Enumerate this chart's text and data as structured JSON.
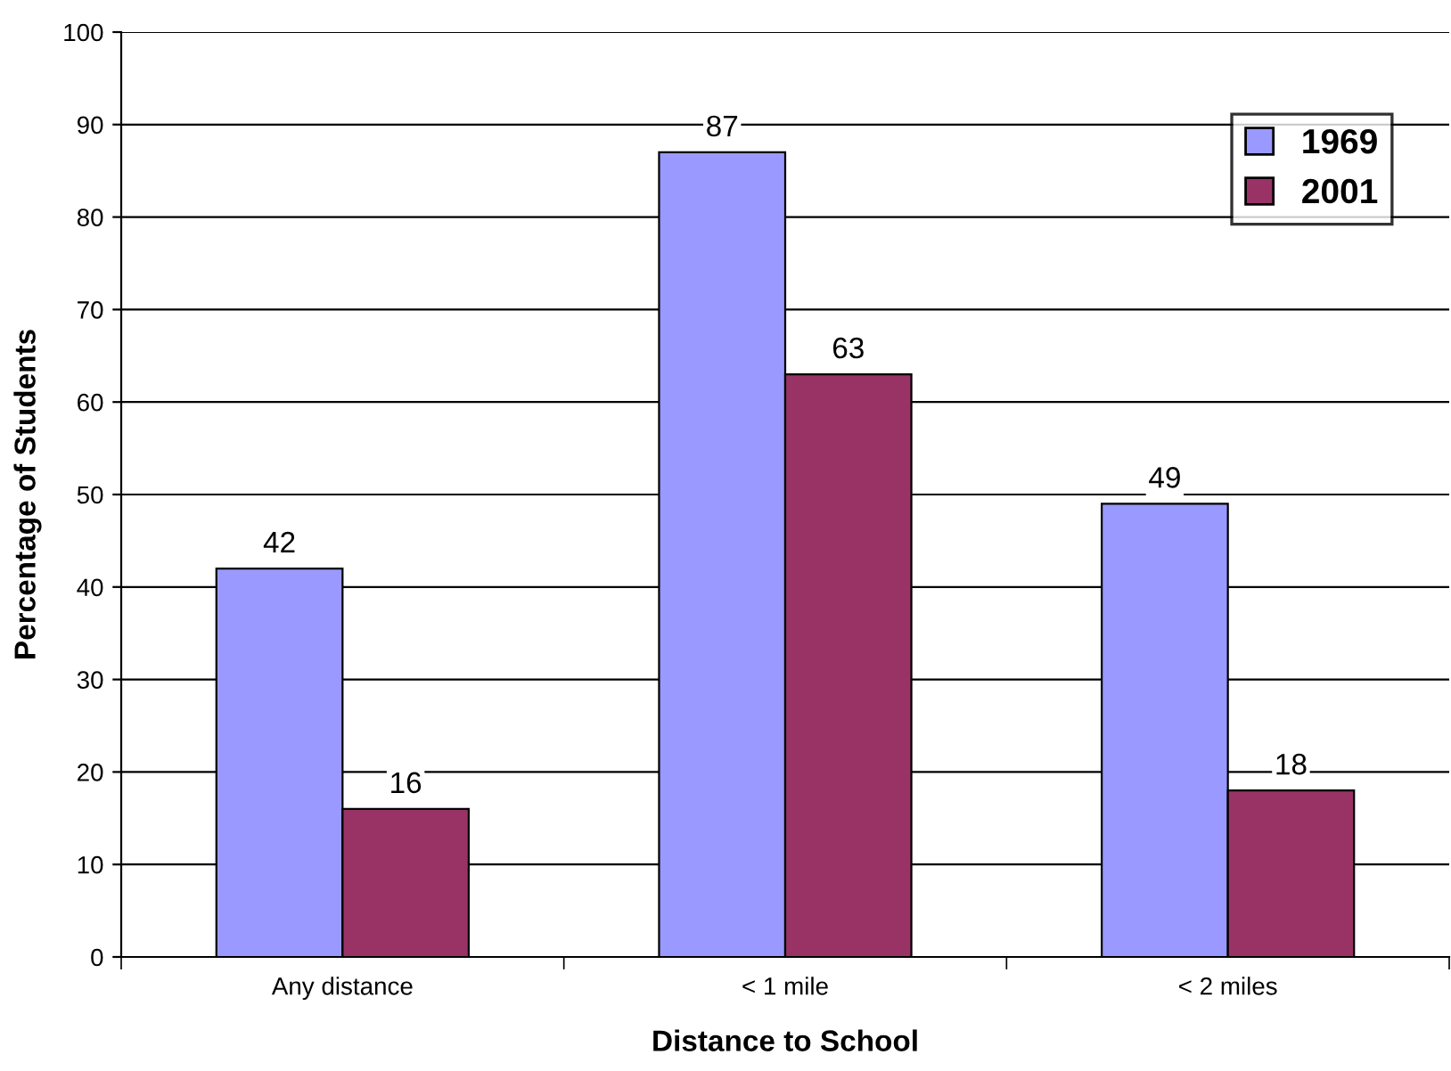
{
  "chart_data": {
    "type": "bar",
    "xlabel": "Distance to School",
    "ylabel": "Percentage of Students",
    "categories": [
      "Any distance",
      "< 1 mile",
      "< 2 miles"
    ],
    "series": [
      {
        "name": "1969",
        "color": "#9999ff",
        "values": [
          42,
          87,
          49
        ]
      },
      {
        "name": "2001",
        "color": "#993366",
        "values": [
          16,
          63,
          18
        ]
      }
    ],
    "ylim": [
      0,
      100
    ],
    "yticks": [
      0,
      10,
      20,
      30,
      40,
      50,
      60,
      70,
      80,
      90,
      100
    ],
    "grid": "y",
    "legend": "top right",
    "data_labels": true
  }
}
